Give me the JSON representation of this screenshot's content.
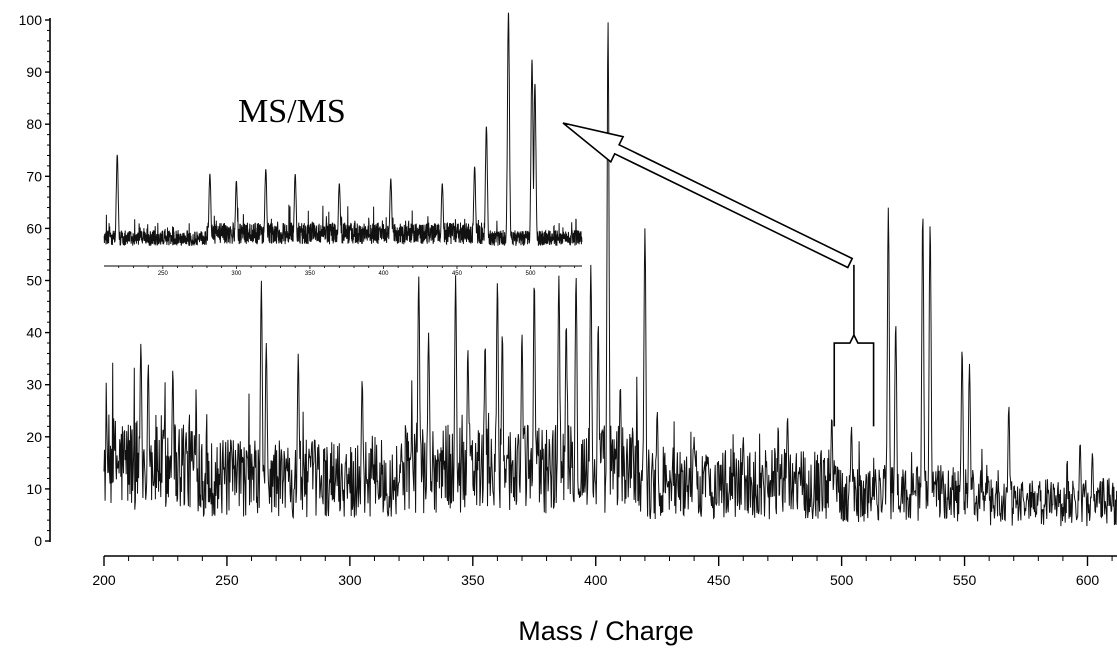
{
  "chart_data": [
    {
      "type": "line",
      "title": "",
      "xlabel": "Mass / Charge",
      "ylabel": "",
      "xlim": [
        200,
        612
      ],
      "ylim": [
        0,
        100
      ],
      "x_ticks": [
        200,
        250,
        300,
        350,
        400,
        450,
        500,
        550,
        600
      ],
      "y_ticks": [
        0,
        10,
        20,
        30,
        40,
        50,
        60,
        70,
        80,
        90,
        100
      ],
      "grid": false,
      "series": [
        {
          "peaks": [
            {
              "x": 215,
              "y": 38
            },
            {
              "x": 218,
              "y": 34
            },
            {
              "x": 228,
              "y": 33
            },
            {
              "x": 264,
              "y": 50
            },
            {
              "x": 266,
              "y": 38
            },
            {
              "x": 279,
              "y": 36
            },
            {
              "x": 305,
              "y": 31
            },
            {
              "x": 328,
              "y": 51
            },
            {
              "x": 332,
              "y": 40
            },
            {
              "x": 343,
              "y": 51
            },
            {
              "x": 348,
              "y": 37
            },
            {
              "x": 355,
              "y": 38
            },
            {
              "x": 360,
              "y": 50
            },
            {
              "x": 362,
              "y": 40
            },
            {
              "x": 370,
              "y": 40
            },
            {
              "x": 375,
              "y": 50
            },
            {
              "x": 385,
              "y": 51
            },
            {
              "x": 388,
              "y": 42
            },
            {
              "x": 392,
              "y": 51
            },
            {
              "x": 398,
              "y": 53
            },
            {
              "x": 401,
              "y": 42
            },
            {
              "x": 405,
              "y": 100
            },
            {
              "x": 410,
              "y": 30
            },
            {
              "x": 415,
              "y": 22
            },
            {
              "x": 420,
              "y": 60
            },
            {
              "x": 425,
              "y": 25
            },
            {
              "x": 440,
              "y": 20
            },
            {
              "x": 460,
              "y": 20
            },
            {
              "x": 478,
              "y": 24
            },
            {
              "x": 496,
              "y": 24
            },
            {
              "x": 504,
              "y": 22
            },
            {
              "x": 519,
              "y": 64
            },
            {
              "x": 522,
              "y": 42
            },
            {
              "x": 533,
              "y": 63
            },
            {
              "x": 536,
              "y": 61
            },
            {
              "x": 549,
              "y": 37
            },
            {
              "x": 552,
              "y": 34
            },
            {
              "x": 568,
              "y": 26
            },
            {
              "x": 597,
              "y": 19
            },
            {
              "x": 602,
              "y": 17
            }
          ]
        }
      ],
      "annotations": [
        {
          "type": "bracket",
          "x_from": 497,
          "x_to": 513,
          "y": 38,
          "tip_y": 53
        },
        {
          "type": "arrow",
          "from": [
            506,
            52
          ],
          "to_inset": "MS/MS"
        }
      ]
    },
    {
      "type": "line",
      "title": "MS/MS",
      "xlabel": "",
      "ylabel": "",
      "xlim": [
        210,
        535
      ],
      "x_ticks": [
        250,
        300,
        350,
        400,
        450,
        500
      ],
      "grid": false,
      "series": [
        {
          "peaks": [
            {
              "x": 219,
              "y": 40
            },
            {
              "x": 282,
              "y": 32
            },
            {
              "x": 300,
              "y": 29
            },
            {
              "x": 320,
              "y": 34
            },
            {
              "x": 340,
              "y": 32
            },
            {
              "x": 370,
              "y": 28
            },
            {
              "x": 405,
              "y": 30
            },
            {
              "x": 440,
              "y": 28
            },
            {
              "x": 462,
              "y": 35
            },
            {
              "x": 470,
              "y": 52
            },
            {
              "x": 485,
              "y": 100
            },
            {
              "x": 501,
              "y": 80
            },
            {
              "x": 503,
              "y": 70
            }
          ]
        }
      ]
    }
  ]
}
